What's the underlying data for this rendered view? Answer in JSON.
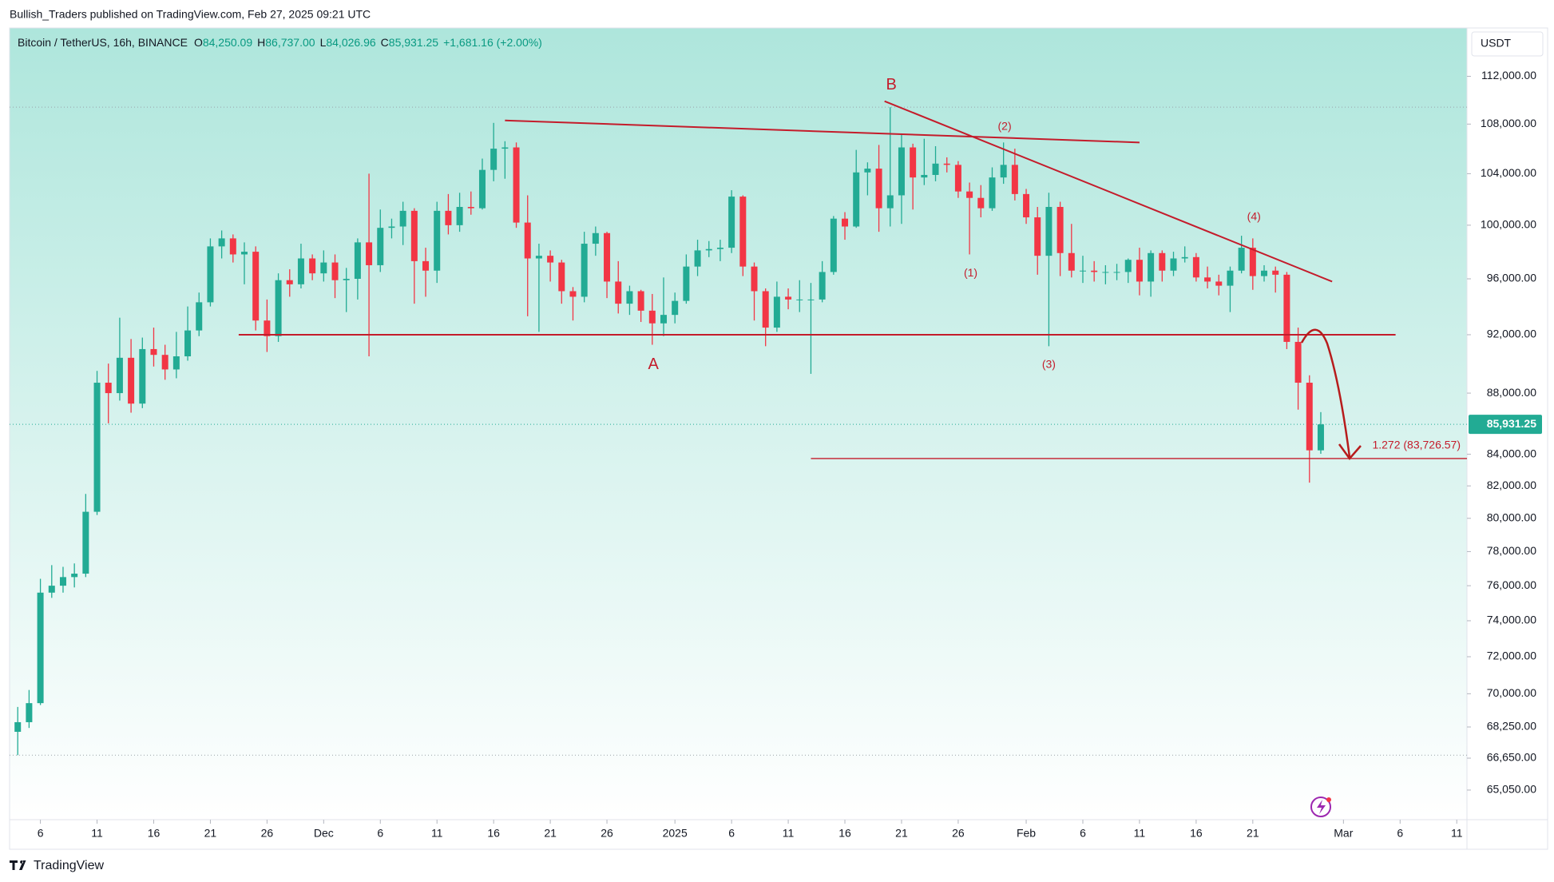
{
  "header": {
    "published": "Bullish_Traders published on TradingView.com, Feb 27, 2025 09:21 UTC",
    "symbol": "Bitcoin / TetherUS, 16h, BINANCE",
    "fields": [
      {
        "key": "O",
        "value": "84,250.09"
      },
      {
        "key": "H",
        "value": "86,737.00"
      },
      {
        "key": "L",
        "value": "84,026.96"
      },
      {
        "key": "C",
        "value": "85,931.25"
      }
    ],
    "change": "+1,681.16 (+2.00%)",
    "currency": "USDT"
  },
  "footer": {
    "brand": "TradingView"
  },
  "chart_data": {
    "type": "candlestick",
    "log_scale": true,
    "up_color": "#22ab94",
    "down_color": "#f23645",
    "xlim": [
      -2.72,
      125.9
    ],
    "ylim": [
      63600,
      116200
    ],
    "xticks": [
      {
        "value": 0,
        "label": "6"
      },
      {
        "value": 5,
        "label": "11"
      },
      {
        "value": 10,
        "label": "16"
      },
      {
        "value": 15,
        "label": "21"
      },
      {
        "value": 20,
        "label": "26"
      },
      {
        "value": 25,
        "label": "Dec"
      },
      {
        "value": 30,
        "label": "6"
      },
      {
        "value": 35,
        "label": "11"
      },
      {
        "value": 40,
        "label": "16"
      },
      {
        "value": 45,
        "label": "21"
      },
      {
        "value": 50,
        "label": "26"
      },
      {
        "value": 56,
        "label": "2025"
      },
      {
        "value": 61,
        "label": "6"
      },
      {
        "value": 66,
        "label": "11"
      },
      {
        "value": 71,
        "label": "16"
      },
      {
        "value": 76,
        "label": "21"
      },
      {
        "value": 81,
        "label": "26"
      },
      {
        "value": 87,
        "label": "Feb"
      },
      {
        "value": 92,
        "label": "6"
      },
      {
        "value": 97,
        "label": "11"
      },
      {
        "value": 102,
        "label": "16"
      },
      {
        "value": 107,
        "label": "21"
      },
      {
        "value": 115,
        "label": "Mar"
      },
      {
        "value": 120,
        "label": "6"
      },
      {
        "value": 125,
        "label": "11"
      }
    ],
    "yticks": [
      {
        "value": 112000,
        "label": "112,000.00"
      },
      {
        "value": 108000,
        "label": "108,000.00"
      },
      {
        "value": 104000,
        "label": "104,000.00"
      },
      {
        "value": 100000,
        "label": "100,000.00"
      },
      {
        "value": 96000,
        "label": "96,000.00"
      },
      {
        "value": 92000,
        "label": "92,000.00"
      },
      {
        "value": 88000,
        "label": "88,000.00"
      },
      {
        "value": 84000,
        "label": "84,000.00"
      },
      {
        "value": 82000,
        "label": "82,000.00"
      },
      {
        "value": 80000,
        "label": "80,000.00"
      },
      {
        "value": 78000,
        "label": "78,000.00"
      },
      {
        "value": 76000,
        "label": "76,000.00"
      },
      {
        "value": 74000,
        "label": "74,000.00"
      },
      {
        "value": 72000,
        "label": "72,000.00"
      },
      {
        "value": 70000,
        "label": "70,000.00"
      },
      {
        "value": 68250,
        "label": "68,250.00"
      },
      {
        "value": 66650,
        "label": "66,650.00"
      },
      {
        "value": 65050,
        "label": "65,050.00"
      }
    ],
    "x": [
      -2,
      -1,
      0,
      1,
      2,
      3,
      4,
      5,
      6,
      7,
      8,
      9,
      10,
      11,
      12,
      13,
      14,
      15,
      16,
      17,
      18,
      19,
      20,
      21,
      22,
      23,
      24,
      25,
      26,
      27,
      28,
      29,
      30,
      31,
      32,
      33,
      34,
      35,
      36,
      37,
      38,
      39,
      40,
      41,
      42,
      43,
      44,
      45,
      46,
      47,
      48,
      49,
      50,
      51,
      52,
      53,
      54,
      55,
      56,
      57,
      58,
      59,
      60,
      61,
      62,
      63,
      64,
      65,
      66,
      67,
      68,
      69,
      70,
      71,
      72,
      73,
      74,
      75,
      76,
      77,
      78,
      79,
      80,
      81,
      82,
      83,
      84,
      85,
      86,
      87,
      88,
      89,
      90,
      91,
      92,
      93,
      94,
      95,
      96,
      97,
      98,
      99,
      100,
      101,
      102,
      103,
      104,
      105,
      106,
      107,
      108,
      109,
      110,
      111,
      112,
      113
    ],
    "ohlc": [
      [
        68000,
        69300,
        66800,
        68500
      ],
      [
        68500,
        70200,
        68200,
        69500
      ],
      [
        69500,
        76400,
        69400,
        75600
      ],
      [
        75600,
        77200,
        75300,
        76000
      ],
      [
        76000,
        77100,
        75600,
        76500
      ],
      [
        76500,
        77300,
        75900,
        76700
      ],
      [
        76700,
        81500,
        76500,
        80400
      ],
      [
        80400,
        89500,
        80200,
        88700
      ],
      [
        88700,
        90000,
        86000,
        88000
      ],
      [
        88000,
        93200,
        87500,
        90400
      ],
      [
        90400,
        91700,
        86700,
        87300
      ],
      [
        87300,
        91800,
        87000,
        91000
      ],
      [
        91000,
        92500,
        89800,
        90600
      ],
      [
        90600,
        91300,
        88900,
        89600
      ],
      [
        89600,
        92200,
        89000,
        90500
      ],
      [
        90500,
        94000,
        90200,
        92300
      ],
      [
        92300,
        95000,
        91900,
        94300
      ],
      [
        94300,
        99000,
        94000,
        98400
      ],
      [
        98400,
        99600,
        97500,
        99000
      ],
      [
        99000,
        99300,
        97200,
        97800
      ],
      [
        97800,
        98700,
        95600,
        98000
      ],
      [
        98000,
        98400,
        92300,
        93000
      ],
      [
        93000,
        94500,
        90800,
        91900
      ],
      [
        91900,
        96400,
        91500,
        95900
      ],
      [
        95900,
        96700,
        94700,
        95600
      ],
      [
        95600,
        98600,
        95300,
        97500
      ],
      [
        97500,
        97800,
        95900,
        96400
      ],
      [
        96400,
        98100,
        95800,
        97200
      ],
      [
        97200,
        97800,
        94600,
        95900
      ],
      [
        95900,
        96800,
        93600,
        96000
      ],
      [
        96000,
        99000,
        94500,
        98700
      ],
      [
        98700,
        104000,
        90500,
        97000
      ],
      [
        97000,
        101200,
        96500,
        99800
      ],
      [
        99800,
        100500,
        99000,
        99900
      ],
      [
        99900,
        101800,
        98500,
        101100
      ],
      [
        101100,
        101300,
        94200,
        97300
      ],
      [
        97300,
        98300,
        94700,
        96600
      ],
      [
        96600,
        101800,
        95700,
        101100
      ],
      [
        101100,
        102400,
        99300,
        100000
      ],
      [
        100000,
        102500,
        99500,
        101400
      ],
      [
        101400,
        102600,
        100800,
        101300
      ],
      [
        101300,
        105200,
        101200,
        104300
      ],
      [
        104300,
        108100,
        103400,
        106000
      ],
      [
        106000,
        106600,
        103600,
        106100
      ],
      [
        106100,
        106500,
        99800,
        100200
      ],
      [
        100200,
        102300,
        93300,
        97500
      ],
      [
        97500,
        98600,
        92200,
        97700
      ],
      [
        97700,
        98100,
        95800,
        97200
      ],
      [
        97200,
        97400,
        94200,
        95100
      ],
      [
        95100,
        95400,
        93000,
        94700
      ],
      [
        94700,
        99500,
        94300,
        98600
      ],
      [
        98600,
        99900,
        97700,
        99400
      ],
      [
        99400,
        99500,
        94600,
        95800
      ],
      [
        95800,
        97300,
        93500,
        94200
      ],
      [
        94200,
        95500,
        93400,
        95100
      ],
      [
        95100,
        95200,
        92900,
        93700
      ],
      [
        93700,
        94900,
        91300,
        92800
      ],
      [
        92800,
        96100,
        91900,
        93400
      ],
      [
        93400,
        95000,
        92800,
        94400
      ],
      [
        94400,
        97800,
        94200,
        96900
      ],
      [
        96900,
        98900,
        96200,
        98100
      ],
      [
        98100,
        98800,
        97600,
        98200
      ],
      [
        98200,
        98900,
        97300,
        98300
      ],
      [
        98300,
        102700,
        97900,
        102200
      ],
      [
        102200,
        102300,
        96200,
        96900
      ],
      [
        96900,
        97200,
        93000,
        95100
      ],
      [
        95100,
        95300,
        91200,
        92500
      ],
      [
        92500,
        95800,
        92200,
        94700
      ],
      [
        94700,
        95300,
        93800,
        94500
      ],
      [
        94500,
        95900,
        93600,
        94500
      ],
      [
        94500,
        95700,
        89300,
        94500
      ],
      [
        94500,
        97300,
        94300,
        96500
      ],
      [
        96500,
        100700,
        96300,
        100500
      ],
      [
        100500,
        101000,
        98900,
        99900
      ],
      [
        99900,
        105900,
        99800,
        104100
      ],
      [
        104100,
        104900,
        102300,
        104400
      ],
      [
        104400,
        106300,
        99500,
        101300
      ],
      [
        101300,
        109400,
        99900,
        102300
      ],
      [
        102300,
        107200,
        100100,
        106100
      ],
      [
        106100,
        106400,
        101200,
        103700
      ],
      [
        103700,
        106800,
        103100,
        103900
      ],
      [
        103900,
        106200,
        103400,
        104800
      ],
      [
        104800,
        105300,
        104100,
        104700
      ],
      [
        104700,
        105000,
        102100,
        102600
      ],
      [
        102600,
        103300,
        97800,
        102100
      ],
      [
        102100,
        103100,
        100600,
        101300
      ],
      [
        101300,
        104500,
        101100,
        103700
      ],
      [
        103700,
        106500,
        103200,
        104700
      ],
      [
        104700,
        106000,
        101900,
        102400
      ],
      [
        102400,
        102800,
        100100,
        100600
      ],
      [
        100600,
        101400,
        96300,
        97700
      ],
      [
        97700,
        102500,
        91200,
        101400
      ],
      [
        101400,
        101800,
        96200,
        97900
      ],
      [
        97900,
        100100,
        96100,
        96600
      ],
      [
        96600,
        97700,
        95700,
        96600
      ],
      [
        96600,
        97300,
        95800,
        96500
      ],
      [
        96500,
        97000,
        95600,
        96500
      ],
      [
        96500,
        97100,
        95900,
        96500
      ],
      [
        96500,
        97500,
        95700,
        97400
      ],
      [
        97400,
        98300,
        94800,
        95800
      ],
      [
        95800,
        98100,
        94700,
        97900
      ],
      [
        97900,
        98100,
        95800,
        96600
      ],
      [
        96600,
        98000,
        96200,
        97500
      ],
      [
        97500,
        98400,
        97200,
        97600
      ],
      [
        97600,
        97900,
        95800,
        96100
      ],
      [
        96100,
        96900,
        95300,
        95800
      ],
      [
        95800,
        96300,
        94800,
        95500
      ],
      [
        95500,
        96900,
        93600,
        96600
      ],
      [
        96600,
        99200,
        96400,
        98300
      ],
      [
        98300,
        99000,
        95200,
        96200
      ],
      [
        96200,
        97000,
        95800,
        96600
      ],
      [
        96600,
        96900,
        95000,
        96300
      ],
      [
        96300,
        96500,
        91000,
        91500
      ],
      [
        91500,
        92500,
        86900,
        88700
      ],
      [
        88700,
        89200,
        82200,
        84250.09
      ],
      [
        84250.09,
        86737,
        84026.96,
        85931.25
      ]
    ],
    "last_price_label": "85,931.25",
    "trend_color": "#c41c2b",
    "lines": [
      {
        "from": [
          17.5,
          92000
        ],
        "to": [
          119.6,
          92000
        ]
      },
      {
        "from": [
          41,
          108300
        ],
        "to": [
          97,
          106500
        ]
      },
      {
        "from": [
          74.5,
          109900
        ],
        "to": [
          114,
          95800
        ]
      }
    ],
    "fib": {
      "label": "1.272 (83,726.57)",
      "value": 83726.57,
      "from": 68
    },
    "waves": [
      {
        "text": "B",
        "x": 75.1,
        "y": 111240
      },
      {
        "text": "A",
        "x": 54.1,
        "y": 89900
      }
    ],
    "subwaves": [
      {
        "text": "(1)",
        "x": 82.1,
        "y": 96400
      },
      {
        "text": "(2)",
        "x": 85.1,
        "y": 107770
      },
      {
        "text": "(3)",
        "x": 89.0,
        "y": 89900
      },
      {
        "text": "(4)",
        "x": 107.1,
        "y": 100600
      }
    ]
  }
}
